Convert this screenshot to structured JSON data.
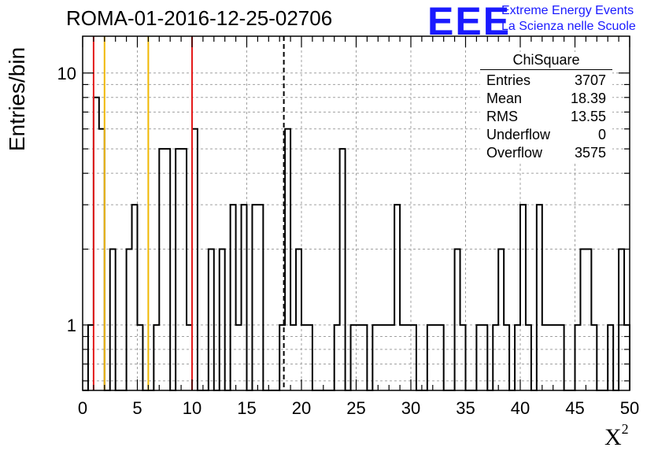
{
  "header": {
    "title": "ROMA-01-2016-12-25-02706",
    "logo_mark": "EEE",
    "logo_line1": "Extreme Energy Events",
    "logo_line2": "La Scienza nelle Scuole"
  },
  "stats_box": {
    "title": "ChiSquare",
    "rows": [
      {
        "label": "Entries",
        "value": "3707"
      },
      {
        "label": "Mean",
        "value": "18.39"
      },
      {
        "label": "RMS",
        "value": "13.55"
      },
      {
        "label": "Underflow",
        "value": "0"
      },
      {
        "label": "Overflow",
        "value": "3575"
      }
    ]
  },
  "chart_data": {
    "type": "bar",
    "histogram": true,
    "xlabel": "X",
    "xlabel_superscript": "2",
    "ylabel": "Entries/bin",
    "xlim": [
      0,
      50
    ],
    "ylim": [
      0.55,
      14
    ],
    "log_y": true,
    "grid": true,
    "bin_width": 0.5,
    "x_ticks": [
      "0",
      "5",
      "10",
      "15",
      "20",
      "25",
      "30",
      "35",
      "40",
      "45",
      "50"
    ],
    "y_ticks": [
      "1",
      "10"
    ],
    "values": [
      0,
      1,
      8,
      6,
      0,
      2,
      0,
      0,
      2,
      3,
      1,
      0,
      0,
      1,
      5,
      5,
      0,
      5,
      5,
      1,
      6,
      0,
      0,
      2,
      0,
      2,
      0,
      3,
      1,
      3,
      0,
      3,
      3,
      0,
      0,
      0,
      1,
      6,
      1,
      2,
      1,
      1,
      0,
      0,
      0,
      0,
      1,
      5,
      0,
      1,
      1,
      1,
      0,
      1,
      1,
      1,
      1,
      3,
      1,
      1,
      1,
      0,
      0,
      1,
      1,
      1,
      0,
      0,
      2,
      1,
      0,
      0,
      1,
      1,
      0,
      1,
      2,
      1,
      0,
      1,
      3,
      1,
      0,
      3,
      1,
      1,
      1,
      1,
      0,
      0,
      1,
      2,
      2,
      1,
      0,
      0,
      1,
      0,
      2,
      1
    ],
    "vertical_lines": [
      {
        "x": 1.0,
        "color": "#e41a1a",
        "style": "solid"
      },
      {
        "x": 2.0,
        "color": "#f0b800",
        "style": "solid"
      },
      {
        "x": 6.0,
        "color": "#f0b800",
        "style": "solid"
      },
      {
        "x": 10.0,
        "color": "#e41a1a",
        "style": "solid"
      },
      {
        "x": 18.39,
        "color": "#000000",
        "style": "dashed"
      }
    ]
  }
}
